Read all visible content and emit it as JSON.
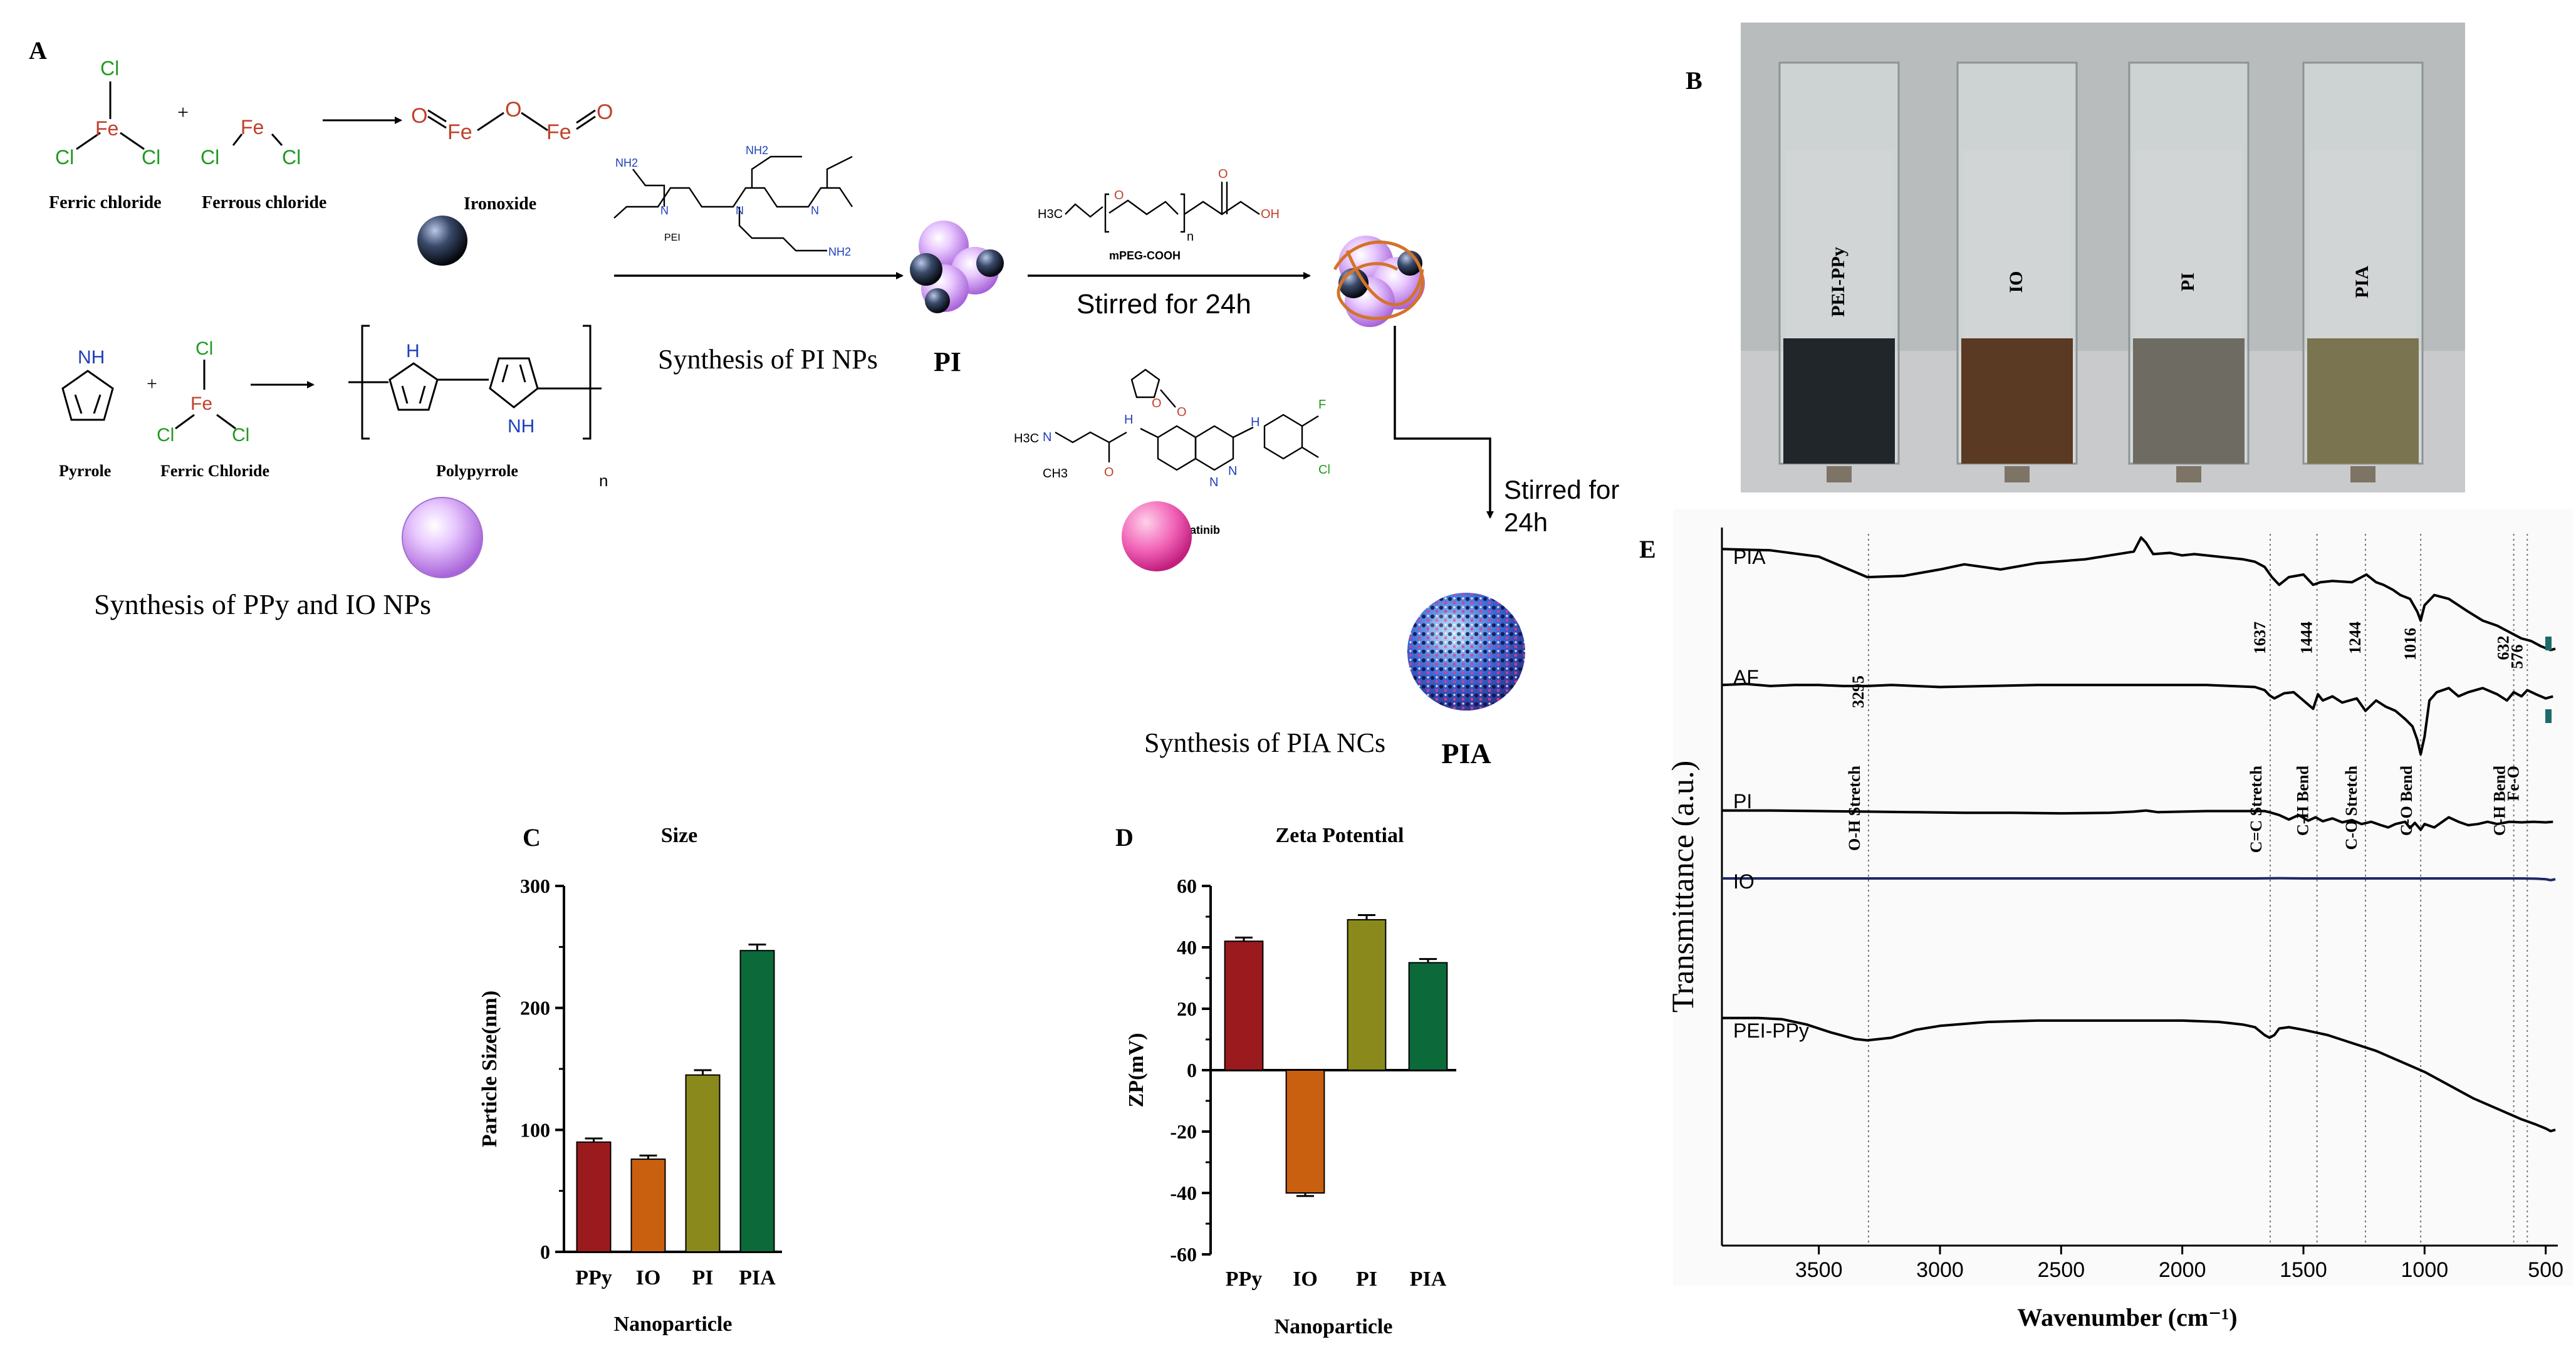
{
  "panel_letters": {
    "a": "A",
    "b": "B",
    "c": "C",
    "d": "D",
    "e": "E"
  },
  "scheme": {
    "atoms": {
      "cl": "Cl",
      "fe": "Fe",
      "o": "O",
      "nh": "NH",
      "h": "H",
      "n": "N",
      "f": "F",
      "h3c": "H3C",
      "ch3": "CH3",
      "nh2": "NH2",
      "oh": "OH"
    },
    "plus": "+",
    "ferric_chloride": "Ferric chloride",
    "ferrous_chloride": "Ferrous chloride",
    "ironoxide": "Ironoxide",
    "pyrrole": "Pyrrole",
    "ferric_chloride_2": "Ferric Chloride",
    "polypyrrole": "Polypyrrole",
    "n_sub": "n",
    "pei": "PEI",
    "mpeg": "mPEG-COOH",
    "afatinib": "Afatinib",
    "synth_ppy_io": "Synthesis of PPy and IO NPs",
    "synth_pi": "Synthesis of PI NPs",
    "pi": "PI",
    "stirred1": "Stirred for 24h",
    "stirred2a": "Stirred for",
    "stirred2b": "24h",
    "synth_pia": "Synthesis of PIA NCs",
    "pia": "PIA"
  },
  "photo": {
    "labels": [
      "PEI-PPy",
      "IO",
      "PI",
      "PIA"
    ],
    "liquid_colors": [
      "#20262a",
      "#5a3a22",
      "#6e6c62",
      "#7a7450"
    ]
  },
  "chart_data": [
    {
      "type": "bar",
      "title": "Size",
      "categories": [
        "PPy",
        "IO",
        "PI",
        "PIA"
      ],
      "values": [
        90,
        76,
        145,
        247
      ],
      "errors": [
        3,
        3,
        4,
        5
      ],
      "colors": [
        "#9b1a1d",
        "#c8600f",
        "#8a8a1c",
        "#0c6a3a"
      ],
      "xlabel": "Nanoparticle",
      "ylabel": "Particle Size(nm)",
      "ylim": [
        0,
        300
      ],
      "yticks": [
        "0",
        "100",
        "200",
        "300"
      ]
    },
    {
      "type": "bar",
      "title": "Zeta Potential",
      "categories": [
        "PPy",
        "IO",
        "PI",
        "PIA"
      ],
      "values": [
        42,
        -40,
        49,
        35
      ],
      "errors": [
        1.2,
        1.0,
        1.5,
        1.2
      ],
      "colors": [
        "#9b1a1d",
        "#c8600f",
        "#8a8a1c",
        "#0c6a3a"
      ],
      "xlabel": "Nanoparticle",
      "ylabel": "ZP(mV)",
      "ylim": [
        -60,
        60
      ],
      "yticks": [
        "-60",
        "-40",
        "-20",
        "0",
        "20",
        "40",
        "60"
      ]
    },
    {
      "type": "line",
      "xlabel": "Wavenumber (cm⁻¹)",
      "ylabel": "Transmittance (a.u.)",
      "xlim": [
        3900,
        450
      ],
      "xticks": [
        "3500",
        "3000",
        "2500",
        "2000",
        "1500",
        "1000",
        "500"
      ],
      "series": [
        {
          "name": "PIA",
          "x": [
            3900,
            3700,
            3500,
            3300,
            3150,
            3000,
            2900,
            2750,
            2600,
            2400,
            2200,
            2170,
            2150,
            2120,
            2050,
            2000,
            1950,
            1850,
            1750,
            1700,
            1660,
            1630,
            1600,
            1560,
            1500,
            1460,
            1430,
            1380,
            1300,
            1260,
            1240,
            1200,
            1170,
            1130,
            1100,
            1060,
            1030,
            1016,
            1000,
            960,
            900,
            820,
            760,
            700,
            640,
            600,
            560,
            520,
            480,
            460
          ],
          "y": [
            0.94,
            0.93,
            0.88,
            0.72,
            0.73,
            0.78,
            0.82,
            0.78,
            0.83,
            0.86,
            0.92,
            1.03,
            0.99,
            0.9,
            0.91,
            0.89,
            0.9,
            0.88,
            0.86,
            0.84,
            0.8,
            0.72,
            0.66,
            0.72,
            0.74,
            0.66,
            0.68,
            0.69,
            0.68,
            0.72,
            0.74,
            0.68,
            0.66,
            0.62,
            0.58,
            0.55,
            0.45,
            0.38,
            0.5,
            0.58,
            0.55,
            0.45,
            0.38,
            0.34,
            0.28,
            0.24,
            0.22,
            0.18,
            0.15,
            0.16
          ]
        },
        {
          "name": "AF",
          "x": [
            3900,
            3800,
            3700,
            3600,
            3500,
            3400,
            3300,
            3200,
            3000,
            2800,
            2600,
            2400,
            2200,
            2000,
            1900,
            1800,
            1700,
            1660,
            1640,
            1620,
            1580,
            1540,
            1500,
            1460,
            1440,
            1420,
            1380,
            1340,
            1280,
            1244,
            1200,
            1160,
            1120,
            1080,
            1050,
            1030,
            1016,
            1000,
            980,
            950,
            900,
            860,
            820,
            760,
            700,
            660,
            632,
            600,
            576,
            540,
            500,
            470
          ],
          "y": [
            0.95,
            0.96,
            0.94,
            0.95,
            0.95,
            0.94,
            0.94,
            0.95,
            0.93,
            0.94,
            0.95,
            0.95,
            0.95,
            0.95,
            0.95,
            0.94,
            0.93,
            0.9,
            0.85,
            0.82,
            0.87,
            0.88,
            0.8,
            0.72,
            0.86,
            0.8,
            0.84,
            0.78,
            0.82,
            0.7,
            0.8,
            0.74,
            0.7,
            0.62,
            0.55,
            0.42,
            0.28,
            0.45,
            0.8,
            0.88,
            0.92,
            0.84,
            0.88,
            0.92,
            0.86,
            0.8,
            0.88,
            0.84,
            0.9,
            0.86,
            0.82,
            0.84
          ]
        },
        {
          "name": "PI",
          "x": [
            3900,
            3700,
            3500,
            3300,
            3100,
            2900,
            2700,
            2500,
            2300,
            2200,
            2150,
            2100,
            2000,
            1900,
            1800,
            1700,
            1660,
            1640,
            1600,
            1560,
            1520,
            1480,
            1450,
            1420,
            1380,
            1340,
            1300,
            1260,
            1220,
            1180,
            1150,
            1120,
            1080,
            1060,
            1040,
            1016,
            1000,
            960,
            900,
            860,
            820,
            780,
            740,
            700,
            650,
            600,
            550,
            500,
            470
          ],
          "y": [
            0.96,
            0.96,
            0.95,
            0.94,
            0.93,
            0.92,
            0.92,
            0.91,
            0.92,
            0.94,
            0.96,
            0.93,
            0.94,
            0.95,
            0.95,
            0.95,
            0.95,
            0.93,
            0.88,
            0.8,
            0.88,
            0.78,
            0.84,
            0.77,
            0.82,
            0.75,
            0.79,
            0.72,
            0.76,
            0.7,
            0.66,
            0.72,
            0.76,
            0.65,
            0.74,
            0.62,
            0.72,
            0.66,
            0.84,
            0.76,
            0.7,
            0.72,
            0.76,
            0.72,
            0.76,
            0.75,
            0.76,
            0.75,
            0.76
          ]
        },
        {
          "name": "IO",
          "x": [
            3900,
            3500,
            3000,
            2500,
            2000,
            1700,
            1600,
            1500,
            1400,
            1300,
            1200,
            1100,
            1000,
            900,
            800,
            700,
            600,
            540,
            500,
            480,
            470,
            460
          ],
          "y": [
            0.95,
            0.95,
            0.95,
            0.95,
            0.95,
            0.95,
            0.96,
            0.95,
            0.95,
            0.95,
            0.95,
            0.95,
            0.95,
            0.95,
            0.95,
            0.95,
            0.95,
            0.94,
            0.92,
            0.88,
            0.9,
            0.92
          ]
        },
        {
          "name": "PEI-PPy",
          "x": [
            3900,
            3750,
            3650,
            3550,
            3450,
            3350,
            3300,
            3200,
            3100,
            3000,
            2800,
            2600,
            2400,
            2200,
            2000,
            1850,
            1750,
            1700,
            1660,
            1640,
            1620,
            1600,
            1560,
            1500,
            1400,
            1300,
            1200,
            1100,
            1000,
            900,
            800,
            700,
            600,
            540,
            500,
            480,
            460
          ],
          "y": [
            0.93,
            0.93,
            0.92,
            0.88,
            0.82,
            0.77,
            0.76,
            0.78,
            0.84,
            0.87,
            0.9,
            0.91,
            0.91,
            0.91,
            0.91,
            0.9,
            0.88,
            0.86,
            0.8,
            0.78,
            0.8,
            0.85,
            0.86,
            0.84,
            0.8,
            0.74,
            0.68,
            0.6,
            0.52,
            0.42,
            0.32,
            0.24,
            0.16,
            0.12,
            0.09,
            0.07,
            0.08
          ]
        }
      ],
      "peaks": [
        {
          "x": 3295,
          "value": "3295",
          "assignment": "O-H Stretch"
        },
        {
          "x": 1637,
          "value": "1637",
          "assignment": "C=C Stretch"
        },
        {
          "x": 1444,
          "value": "1444",
          "assignment": "C-H Bend"
        },
        {
          "x": 1244,
          "value": "1244",
          "assignment": "C-O Stretch"
        },
        {
          "x": 1016,
          "value": "1016",
          "assignment": "C-O Bend"
        },
        {
          "x": 632,
          "value": "632",
          "assignment": "C-H Bend"
        },
        {
          "x": 576,
          "value": "576",
          "assignment": "Fe-O"
        }
      ]
    }
  ]
}
